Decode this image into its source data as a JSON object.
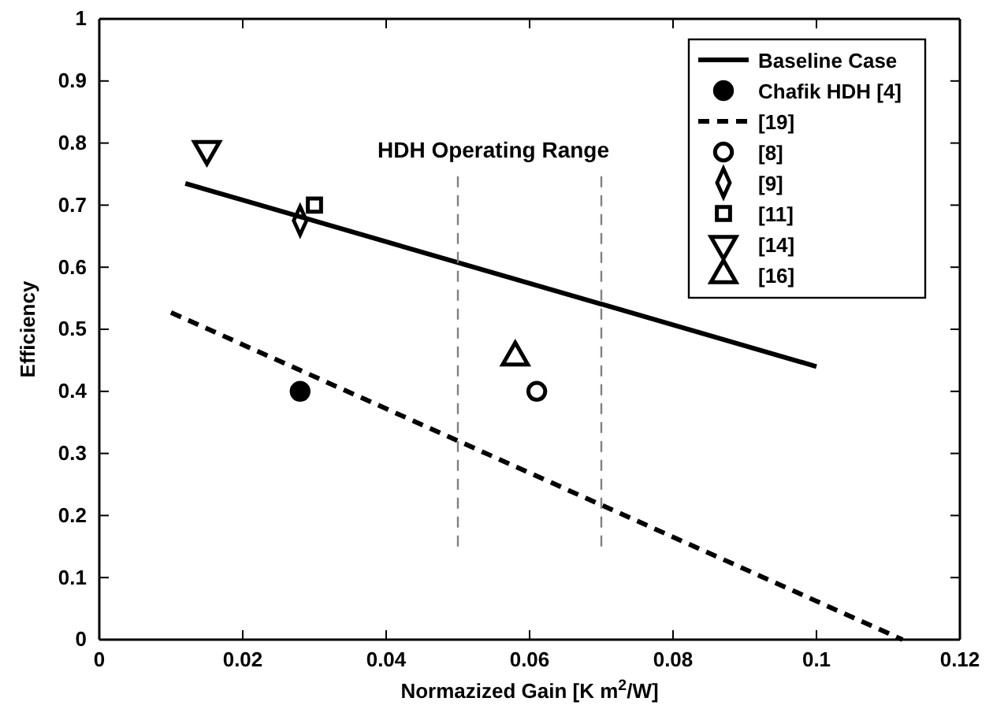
{
  "chart_data": {
    "type": "line",
    "xlabel": "Normazized Gain [K m$^{2}$/W]",
    "ylabel": "Efficiency",
    "xlim": [
      0,
      0.12
    ],
    "xticks": [
      0,
      0.02,
      0.04,
      0.06,
      0.08,
      0.1,
      0.12
    ],
    "ylim": [
      0,
      1
    ],
    "yticks": [
      0,
      0.1,
      0.2,
      0.3,
      0.4,
      0.5,
      0.6,
      0.7,
      0.8,
      0.9,
      1
    ],
    "grid": false,
    "legend": "top right",
    "annotations": [
      "HDH Operating Range"
    ],
    "series": [
      {
        "name": "Baseline Case",
        "type": "line",
        "color": "#000000",
        "line_style": "solid",
        "marker": "none",
        "x": [
          0.012,
          0.1
        ],
        "values": [
          0.735,
          0.44
        ]
      },
      {
        "name": "Chafik HDH [4]",
        "type": "scatter",
        "color": "#000000",
        "marker": "filled-circle",
        "x": [
          0.028
        ],
        "values": [
          0.4
        ]
      },
      {
        "name": "[19]",
        "type": "line",
        "color": "#000000",
        "line_style": "dashed",
        "marker": "none",
        "x": [
          0.01,
          0.112
        ],
        "values": [
          0.527,
          0
        ]
      },
      {
        "name": "[8]",
        "type": "scatter",
        "color": "#000000",
        "marker": "circle",
        "x": [
          0.061
        ],
        "values": [
          0.4
        ]
      },
      {
        "name": "[9]",
        "type": "scatter",
        "color": "#000000",
        "marker": "diamond",
        "x": [
          0.028
        ],
        "values": [
          0.675
        ]
      },
      {
        "name": "[11]",
        "type": "scatter",
        "color": "#000000",
        "marker": "square",
        "x": [
          0.03
        ],
        "values": [
          0.7
        ]
      },
      {
        "name": "[14]",
        "type": "scatter",
        "color": "#000000",
        "marker": "triangle-down",
        "x": [
          0.015
        ],
        "values": [
          0.79
        ]
      },
      {
        "name": "[16]",
        "type": "scatter",
        "color": "#000000",
        "marker": "triangle",
        "x": [
          0.058
        ],
        "values": [
          0.455
        ]
      },
      {
        "color": "#808080",
        "line_style": "dashed",
        "marker": "none",
        "x": [
          0.05,
          0.05
        ],
        "values": [
          0.15,
          0.75
        ]
      },
      {
        "color": "#808080",
        "line_style": "dashed",
        "marker": "none",
        "x": [
          0.07,
          0.07
        ],
        "values": [
          0.15,
          0.75
        ]
      }
    ]
  }
}
